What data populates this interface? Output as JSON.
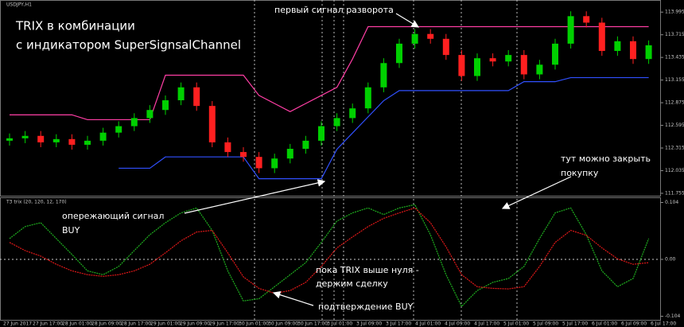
{
  "chart_data": [
    {
      "type": "candlestick",
      "title": "USDJPY,H1",
      "headline": [
        "TRIX в комбинации",
        "с индикатором SuperSignsalChannel"
      ],
      "annotations": [
        "первый сигнал разворота",
        "опережающий сигнал",
        "BUY",
        "тут можно закрыть",
        "покупку",
        "пока TRIX выше нуля -",
        "держим сделку",
        "подтверждение BUY"
      ],
      "up_color": "#00d000",
      "down_color": "#ff2020",
      "open": [
        112.405,
        112.435,
        112.465,
        112.385,
        112.425,
        112.355,
        112.405,
        112.505,
        112.585,
        112.685,
        112.785,
        112.905,
        113.065,
        112.835,
        112.385,
        112.265,
        112.205,
        112.065,
        112.185,
        112.305,
        112.405,
        112.585,
        112.685,
        112.805,
        113.065,
        113.365,
        113.605,
        113.725,
        113.665,
        113.465,
        113.205,
        113.425,
        113.385,
        113.465,
        113.225,
        113.345,
        113.605,
        113.945,
        113.865,
        113.515,
        113.635,
        113.415
      ],
      "close": [
        112.435,
        112.465,
        112.385,
        112.425,
        112.355,
        112.405,
        112.505,
        112.585,
        112.685,
        112.785,
        112.905,
        113.065,
        112.835,
        112.385,
        112.265,
        112.205,
        112.065,
        112.185,
        112.305,
        112.405,
        112.585,
        112.685,
        112.805,
        113.065,
        113.365,
        113.605,
        113.725,
        113.665,
        113.465,
        113.205,
        113.425,
        113.385,
        113.465,
        113.225,
        113.345,
        113.605,
        113.945,
        113.865,
        113.515,
        113.635,
        113.415,
        113.585
      ],
      "high": [
        112.495,
        112.525,
        112.525,
        112.485,
        112.485,
        112.465,
        112.565,
        112.645,
        112.745,
        112.845,
        112.965,
        113.125,
        113.125,
        112.895,
        112.445,
        112.325,
        112.265,
        112.245,
        112.365,
        112.465,
        112.645,
        112.745,
        112.865,
        113.125,
        113.425,
        113.665,
        113.785,
        113.785,
        113.725,
        113.525,
        113.485,
        113.485,
        113.525,
        113.525,
        113.405,
        113.665,
        114.005,
        114.005,
        113.925,
        113.695,
        113.695,
        113.645
      ],
      "low": [
        112.345,
        112.375,
        112.325,
        112.325,
        112.295,
        112.295,
        112.345,
        112.445,
        112.525,
        112.625,
        112.725,
        112.845,
        112.775,
        112.325,
        112.205,
        112.145,
        112.005,
        112.005,
        112.125,
        112.245,
        112.345,
        112.525,
        112.625,
        112.745,
        113.005,
        113.305,
        113.545,
        113.605,
        113.405,
        113.145,
        113.145,
        113.325,
        113.325,
        113.165,
        113.165,
        113.285,
        113.545,
        113.805,
        113.455,
        113.455,
        113.355,
        113.355
      ],
      "overlays": [
        {
          "color": "#ff3ea5",
          "values": [
            112.725,
            112.725,
            112.725,
            112.725,
            112.725,
            112.665,
            112.665,
            112.665,
            112.665,
            112.665,
            113.215,
            113.215,
            113.215,
            113.215,
            113.215,
            113.215,
            112.965,
            112.865,
            112.765,
            112.865,
            112.965,
            113.065,
            113.415,
            113.815,
            113.815,
            113.815,
            113.815,
            113.815,
            113.815,
            113.815,
            113.815,
            113.815,
            113.815,
            113.815,
            113.815,
            113.815,
            113.815,
            113.815,
            113.815,
            113.815,
            113.815,
            113.815
          ]
        },
        {
          "color": "#3050ff",
          "values": [
            null,
            null,
            null,
            null,
            null,
            null,
            null,
            112.065,
            112.065,
            112.065,
            112.205,
            112.205,
            112.205,
            112.205,
            112.205,
            112.205,
            111.935,
            111.935,
            111.935,
            111.935,
            111.935,
            112.3,
            112.5,
            112.7,
            112.9,
            113.025,
            113.025,
            113.025,
            113.025,
            113.025,
            113.025,
            113.025,
            113.025,
            113.135,
            113.135,
            113.135,
            113.185,
            113.185,
            113.185,
            113.185,
            113.185,
            113.185
          ]
        }
      ],
      "ylim": [
        111.725,
        114.135
      ],
      "yticks": [
        111.755,
        112.035,
        112.315,
        112.595,
        112.875,
        113.155,
        113.435,
        113.715,
        113.995
      ],
      "x_labels": [
        "27 Jun 2017",
        "27 Jun 17:00",
        "28 Jun 01:00",
        "28 Jun 09:00",
        "28 Jun 17:00",
        "29 Jun 01:00",
        "29 Jun 09:00",
        "29 Jun 17:00",
        "30 Jun 01:00",
        "30 Jun 09:00",
        "30 Jun 17:00",
        "3 Jul 01:00",
        "3 Jul 09:00",
        "3 Jul 17:00",
        "4 Jul 01:00",
        "4 Jul 09:00",
        "4 Jul 17:00",
        "5 Jul 01:00",
        "5 Jul 09:00",
        "5 Jul 17:00",
        "6 Jul 01:00",
        "6 Jul 09:00",
        "6 Jul 17:00"
      ]
    },
    {
      "type": "line",
      "title": "T3 trix (20, 120, 12, 170)",
      "series": [
        {
          "color": "#1fb01f",
          "values": [
            0.038,
            0.06,
            0.067,
            0.038,
            0.009,
            -0.021,
            -0.028,
            -0.013,
            0.016,
            0.045,
            0.067,
            0.085,
            0.094,
            0.053,
            -0.021,
            -0.076,
            -0.072,
            -0.05,
            -0.028,
            -0.006,
            0.031,
            0.07,
            0.085,
            0.094,
            0.082,
            0.094,
            0.1,
            0.045,
            -0.028,
            -0.086,
            -0.057,
            -0.042,
            -0.035,
            -0.013,
            0.038,
            0.085,
            0.094,
            0.045,
            -0.021,
            -0.05,
            -0.035,
            0.038
          ]
        },
        {
          "color": "#e01818",
          "values": [
            0.031,
            0.016,
            0.006,
            -0.009,
            -0.021,
            -0.028,
            -0.031,
            -0.028,
            -0.021,
            -0.009,
            0.012,
            0.034,
            0.05,
            0.053,
            0.012,
            -0.032,
            -0.053,
            -0.062,
            -0.057,
            -0.042,
            -0.013,
            0.021,
            0.041,
            0.06,
            0.075,
            0.085,
            0.094,
            0.067,
            0.023,
            -0.028,
            -0.05,
            -0.053,
            -0.054,
            -0.05,
            -0.013,
            0.031,
            0.053,
            0.044,
            0.021,
            0.001,
            -0.009,
            -0.006
          ]
        }
      ],
      "ylim": [
        -0.112,
        0.112
      ],
      "yticks": [
        0.104,
        {
          "value": 0,
          "label": "0.00"
        },
        -0.104
      ]
    }
  ]
}
